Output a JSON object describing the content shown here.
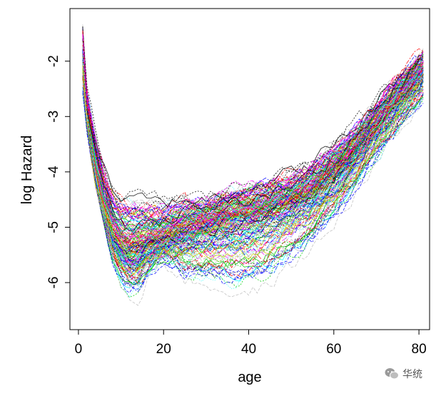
{
  "chart_data": {
    "type": "line",
    "title": "",
    "xlabel": "age",
    "ylabel": "log Hazard",
    "xlim": [
      -2,
      82.5
    ],
    "ylim": [
      -6.85,
      -1.05
    ],
    "xticks": [
      0,
      20,
      40,
      60,
      80
    ],
    "yticks": [
      -6,
      -5,
      -4,
      -3,
      -2
    ],
    "xtick_labels": [
      "0",
      "20",
      "40",
      "60",
      "80"
    ],
    "ytick_labels": [
      "-6",
      "-5",
      "-4",
      "-3",
      "-2"
    ],
    "x": [
      1,
      81
    ],
    "grid": false,
    "legend": "none",
    "n_series": 200,
    "series_description": "ensemble of simulated log-hazard curves by age",
    "envelope": {
      "age": [
        1,
        2,
        4,
        6,
        8,
        10,
        12,
        14,
        16,
        20,
        25,
        30,
        35,
        40,
        45,
        50,
        55,
        60,
        65,
        70,
        75,
        81
      ],
      "lower": [
        -2.9,
        -3.3,
        -4.2,
        -4.9,
        -5.7,
        -6.2,
        -6.5,
        -6.5,
        -6.1,
        -5.7,
        -6.2,
        -6.3,
        -6.5,
        -6.6,
        -6.4,
        -6.0,
        -5.7,
        -5.2,
        -4.6,
        -4.0,
        -3.5,
        -2.9
      ],
      "center": [
        -1.7,
        -3.0,
        -4.1,
        -4.8,
        -5.2,
        -5.4,
        -5.5,
        -5.45,
        -5.35,
        -5.25,
        -5.1,
        -5.0,
        -4.9,
        -4.8,
        -4.7,
        -4.55,
        -4.35,
        -4.05,
        -3.65,
        -3.15,
        -2.7,
        -2.2
      ],
      "upper": [
        -1.3,
        -2.4,
        -3.0,
        -3.5,
        -3.9,
        -4.1,
        -4.1,
        -4.1,
        -4.2,
        -4.3,
        -4.2,
        -4.3,
        -4.1,
        -4.0,
        -3.9,
        -3.8,
        -3.6,
        -3.3,
        -3.0,
        -2.6,
        -2.1,
        -1.65
      ]
    },
    "colors": [
      "#000000",
      "#ff0000",
      "#00cd00",
      "#0000ff",
      "#00ffff",
      "#ff00ff",
      "#cdcd00",
      "#bebebe"
    ]
  },
  "watermark": {
    "icon": "wechat-icon",
    "text": "华统"
  }
}
